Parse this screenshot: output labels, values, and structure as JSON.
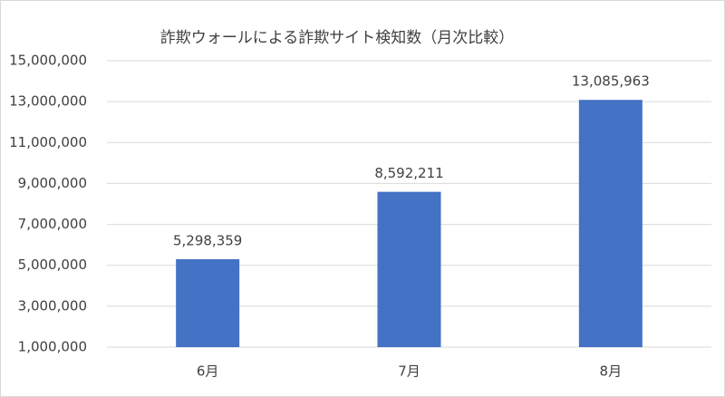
{
  "chart_data": {
    "type": "bar",
    "title": "詐欺ウォールによる詐欺サイト検知数（月次比較）",
    "categories": [
      "6月",
      "7月",
      "8月"
    ],
    "values": [
      5298359,
      8592211,
      13085963
    ],
    "value_labels": [
      "5,298,359",
      "8,592,211",
      "13,085,963"
    ],
    "color": "#4472c4",
    "ylim": [
      1000000,
      15000000
    ],
    "yticks": [
      {
        "value": 1000000,
        "label": "1,000,000"
      },
      {
        "value": 3000000,
        "label": "3,000,000"
      },
      {
        "value": 5000000,
        "label": "5,000,000"
      },
      {
        "value": 7000000,
        "label": "7,000,000"
      },
      {
        "value": 9000000,
        "label": "9,000,000"
      },
      {
        "value": 11000000,
        "label": "11,000,000"
      },
      {
        "value": 13000000,
        "label": "13,000,000"
      },
      {
        "value": 15000000,
        "label": "15,000,000"
      }
    ],
    "grid": true
  }
}
